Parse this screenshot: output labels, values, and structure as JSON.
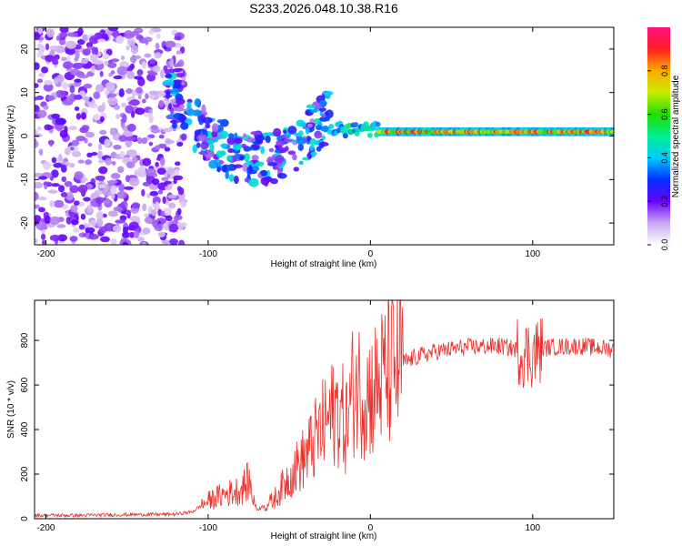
{
  "title": "S233.2026.048.10.38.R16",
  "colors": {
    "axis": "#000000",
    "snr_line": "#e8302c",
    "background": "#ffffff"
  },
  "chart_data": [
    {
      "type": "heatmap",
      "name": "spectrogram",
      "xlabel": "Height of straight line (km)",
      "ylabel": "Frequency (Hz)",
      "xlim": [
        -207,
        150
      ],
      "ylim": [
        -25,
        25
      ],
      "xticks": [
        -200,
        -100,
        0,
        100
      ],
      "yticks": [
        -20,
        -10,
        0,
        10,
        20
      ],
      "xtick_labels": [
        "-200",
        "-100",
        "0",
        "100"
      ],
      "ytick_labels": [
        "-20",
        "-10",
        "0",
        "10",
        "20"
      ],
      "colorbar": {
        "label": "Normalized spectral amplitude",
        "range": [
          0,
          1
        ],
        "ticks": [
          0.0,
          0.2,
          0.4,
          0.6,
          0.8
        ],
        "tick_labels": [
          "0.0",
          "0.2",
          "0.4",
          "0.6",
          "0.8"
        ]
      },
      "features": [
        {
          "description": "scattered noise",
          "x_range": [
            -207,
            -115
          ],
          "freq_range": [
            -25,
            25
          ],
          "amplitude": 0.15
        },
        {
          "description": "dispersed signal",
          "x_range": [
            -125,
            -25
          ],
          "freq_center": [
            10,
            -7
          ],
          "amplitude": 0.35
        },
        {
          "description": "converging line",
          "x_range": [
            -25,
            5
          ],
          "freq": 1.5,
          "amplitude": 0.45
        },
        {
          "description": "carrier line",
          "x_range": [
            5,
            150
          ],
          "freq": 1.0,
          "amplitude": 0.9
        }
      ]
    },
    {
      "type": "line",
      "name": "snr",
      "xlabel": "Height of straight line (km)",
      "ylabel": "SNR (10 * v/v)",
      "xlim": [
        -207,
        150
      ],
      "ylim": [
        0,
        980
      ],
      "xticks": [
        -200,
        -100,
        0,
        100
      ],
      "yticks": [
        0,
        200,
        400,
        600,
        800
      ],
      "xtick_labels": [
        "-200",
        "-100",
        "0",
        "100"
      ],
      "ytick_labels": [
        "0",
        "200",
        "400",
        "600",
        "800"
      ],
      "series": [
        {
          "name": "SNR",
          "x": [
            -207,
            -180,
            -150,
            -120,
            -110,
            -100,
            -90,
            -80,
            -75,
            -70,
            -60,
            -50,
            -40,
            -30,
            -20,
            -15,
            -10,
            0,
            10,
            20,
            30,
            40,
            60,
            80,
            90,
            95,
            100,
            105,
            110,
            130,
            150
          ],
          "y": [
            15,
            15,
            18,
            20,
            30,
            80,
            110,
            130,
            170,
            40,
            80,
            190,
            280,
            400,
            500,
            420,
            600,
            560,
            650,
            700,
            730,
            750,
            770,
            775,
            760,
            740,
            740,
            760,
            770,
            775,
            760
          ]
        }
      ]
    }
  ]
}
